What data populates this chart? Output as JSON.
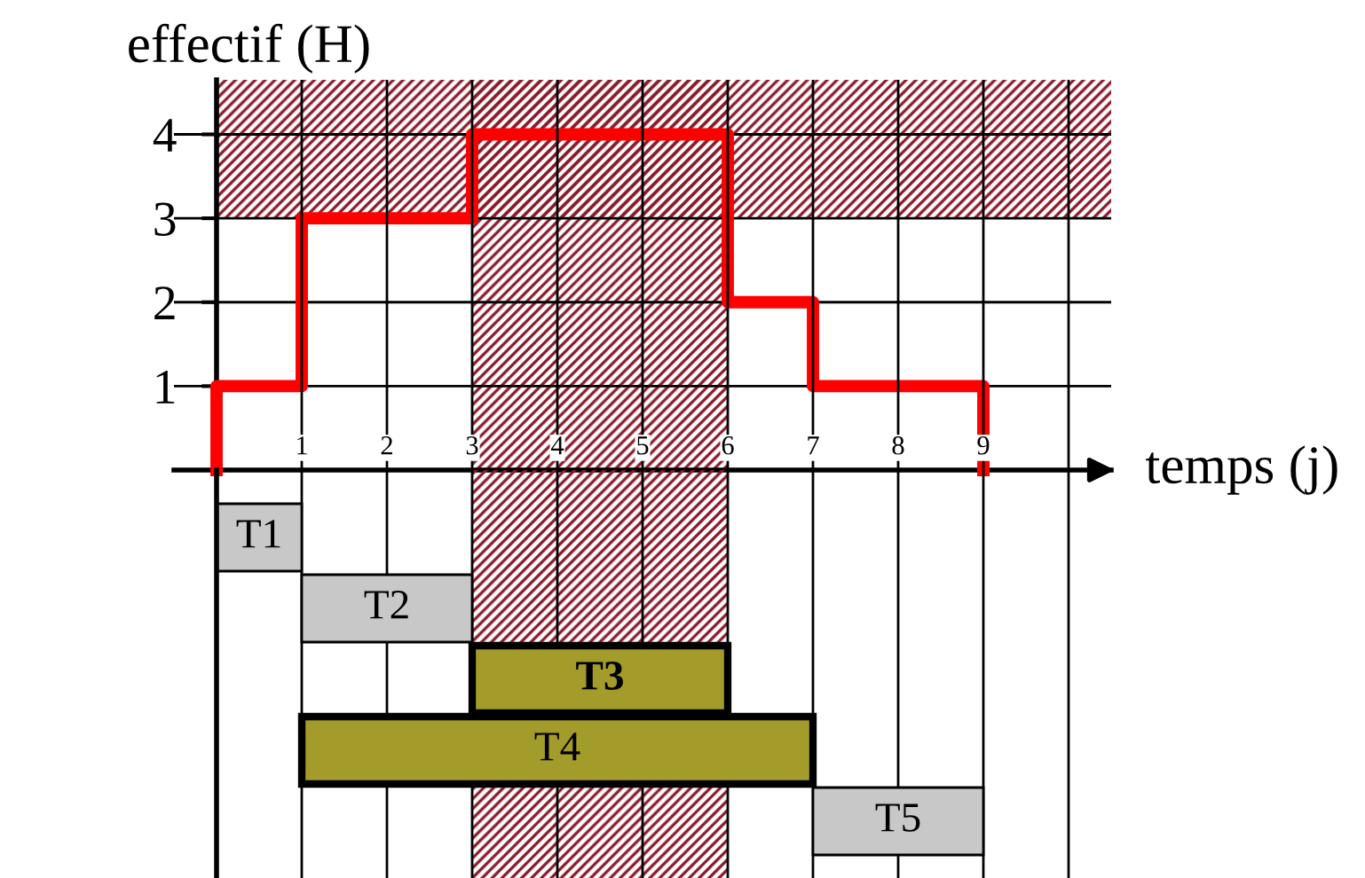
{
  "chart_data": [
    {
      "type": "step",
      "xlabel": "temps (j)",
      "ylabel": "effectif (H)",
      "series": [
        {
          "color": "#ff0000",
          "x": [
            0,
            0,
            1,
            3,
            6,
            7,
            9
          ],
          "values": [
            0,
            1,
            3,
            4,
            2,
            1,
            0
          ]
        }
      ],
      "xlim": [
        -0.5,
        10.5
      ],
      "ylim": [
        0,
        4.65
      ],
      "xticks": [
        1,
        2,
        3,
        4,
        5,
        6,
        7,
        8,
        9,
        {
          "value": 10,
          "label": null
        }
      ],
      "yticks": [
        1,
        2,
        3,
        4
      ],
      "grid": true,
      "bands": [
        {
          "axis": "x",
          "from": 3,
          "to": 6,
          "color": "#8b1a2a"
        },
        {
          "axis": "y",
          "from": 3,
          "to": 4.65,
          "color": "#8b1a2a"
        }
      ]
    },
    {
      "type": "bar",
      "orientation": "horizontal",
      "categories": [
        null,
        null,
        null,
        null,
        null
      ],
      "base": [
        0,
        1,
        3,
        1,
        7
      ],
      "values": [
        1,
        2,
        3,
        6,
        2
      ],
      "colors": [
        "#c8c8c8",
        "#c8c8c8",
        "#a39b2a",
        "#a39b2a",
        "#c8c8c8"
      ],
      "value_labels": [
        "T1",
        "T2",
        "T3",
        "T4",
        "T5"
      ],
      "xlim": [
        -0.5,
        10.5
      ],
      "xticks": [
        {
          "value": 1,
          "label": null
        },
        {
          "value": 2,
          "label": null
        },
        {
          "value": 3,
          "label": null
        },
        {
          "value": 4,
          "label": null
        },
        {
          "value": 5,
          "label": null
        },
        {
          "value": 6,
          "label": null
        },
        {
          "value": 7,
          "label": null
        },
        {
          "value": 8,
          "label": null
        },
        {
          "value": 9,
          "label": null
        },
        {
          "value": 10,
          "label": null
        }
      ],
      "tick_labels": false,
      "grid": "x",
      "bands": [
        {
          "axis": "x",
          "from": 3,
          "to": 6,
          "color": "#8b1a2a"
        }
      ]
    }
  ]
}
